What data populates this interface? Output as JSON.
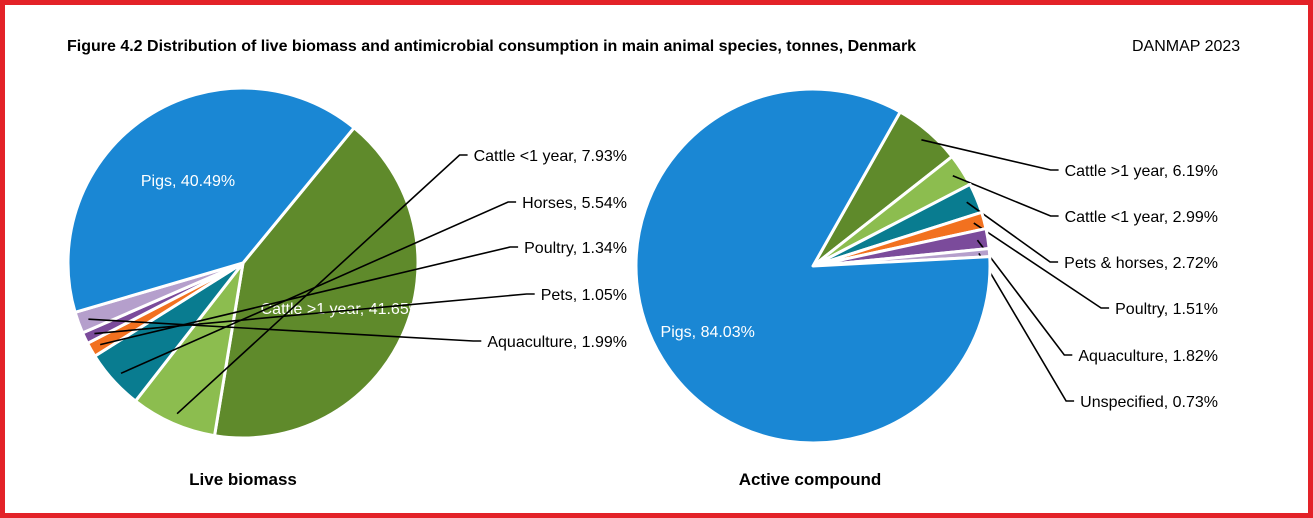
{
  "title": "Figure 4.2 Distribution of live biomass and antimicrobial consumption in main animal species, tonnes, Denmark",
  "source": "DANMAP 2023",
  "chart_data": [
    {
      "type": "pie",
      "caption": "Live biomass",
      "unit": "%",
      "slices": [
        {
          "label": "Cattle >1 year",
          "value": 41.65,
          "color": "#5f8a2b",
          "display": "inside"
        },
        {
          "label": "Cattle <1 year",
          "value": 7.93,
          "color": "#8cbd4f",
          "display": "callout"
        },
        {
          "label": "Horses",
          "value": 5.54,
          "color": "#097c90",
          "display": "callout"
        },
        {
          "label": "Poultry",
          "value": 1.34,
          "color": "#f2711f",
          "display": "callout"
        },
        {
          "label": "Pets",
          "value": 1.05,
          "color": "#7b4b9b",
          "display": "callout"
        },
        {
          "label": "Aquaculture",
          "value": 1.99,
          "color": "#b59fcc",
          "display": "callout"
        },
        {
          "label": "Pigs",
          "value": 40.49,
          "color": "#1a87d4",
          "display": "inside"
        }
      ]
    },
    {
      "type": "pie",
      "caption": "Active compound",
      "unit": "%",
      "slices": [
        {
          "label": "Cattle >1 year",
          "value": 6.19,
          "color": "#5f8a2b",
          "display": "callout"
        },
        {
          "label": "Cattle <1 year",
          "value": 2.99,
          "color": "#8cbd4f",
          "display": "callout"
        },
        {
          "label": "Pets & horses",
          "value": 2.72,
          "color": "#097c90",
          "display": "callout"
        },
        {
          "label": "Poultry",
          "value": 1.51,
          "color": "#f2711f",
          "display": "callout"
        },
        {
          "label": "Aquaculture",
          "value": 1.82,
          "color": "#7b4b9b",
          "display": "callout"
        },
        {
          "label": "Unspecified",
          "value": 0.73,
          "color": "#b59fcc",
          "display": "callout"
        },
        {
          "label": "Pigs",
          "value": 84.03,
          "color": "#1a87d4",
          "display": "inside"
        }
      ]
    }
  ]
}
